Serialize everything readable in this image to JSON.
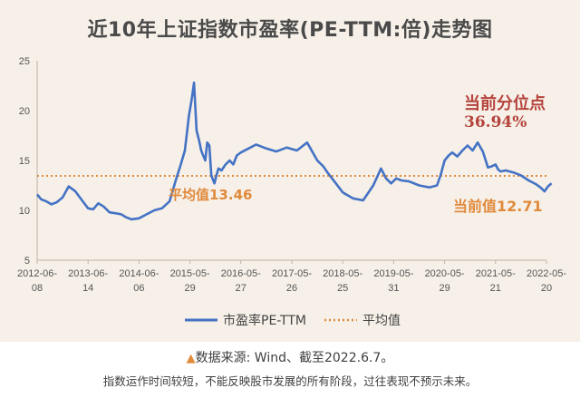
{
  "title": "近10年上证指数市盈率(PE-TTM:倍)走势图",
  "source": {
    "marker": "▲",
    "text": "数据来源: Wind、截至2022.6.7。"
  },
  "disclaimer": "指数运作时间较短，不能反映股市发展的所有阶段，过往表现不预示未来。",
  "annotations": {
    "avg_label": "平均值13.46",
    "current_label": "当前值12.71",
    "percentile_label": "当前分位点",
    "percentile_value": "36.94%"
  },
  "colors": {
    "line": "#4472c4",
    "average": "#e08a3c",
    "percentile": "#b5443d",
    "background": "#f6f0e8"
  },
  "chart_data": {
    "type": "line",
    "title": "近10年上证指数市盈率(PE-TTM:倍)走势图",
    "ylim": [
      5,
      25
    ],
    "yticks": [
      5,
      10,
      15,
      20,
      25
    ],
    "x_ticks": [
      {
        "line1": "2012-06-",
        "line2": "08"
      },
      {
        "line1": "2013-06-",
        "line2": "14"
      },
      {
        "line1": "2014-06-",
        "line2": "06"
      },
      {
        "line1": "2015-05-",
        "line2": "29"
      },
      {
        "line1": "2016-05-",
        "line2": "27"
      },
      {
        "line1": "2017-05-",
        "line2": "26"
      },
      {
        "line1": "2018-05-",
        "line2": "25"
      },
      {
        "line1": "2019-05-",
        "line2": "31"
      },
      {
        "line1": "2020-05-",
        "line2": "29"
      },
      {
        "line1": "2021-05-",
        "line2": "21"
      },
      {
        "line1": "2022-05-",
        "line2": "20"
      }
    ],
    "legend": {
      "series": "市盈率PE-TTM",
      "average": "平均值",
      "placement": "bottom"
    },
    "average": 13.46,
    "current": 12.71,
    "series": [
      {
        "name": "市盈率PE-TTM",
        "x": [
          0.0,
          0.08,
          0.18,
          0.28,
          0.38,
          0.5,
          0.62,
          0.75,
          0.88,
          1.0,
          1.1,
          1.2,
          1.3,
          1.42,
          1.55,
          1.65,
          1.75,
          1.85,
          2.0,
          2.15,
          2.3,
          2.45,
          2.6,
          2.72,
          2.82,
          2.9,
          2.98,
          3.03,
          3.08,
          3.13,
          3.18,
          3.22,
          3.26,
          3.3,
          3.34,
          3.38,
          3.42,
          3.48,
          3.52,
          3.56,
          3.62,
          3.7,
          3.78,
          3.85,
          3.92,
          4.0,
          4.15,
          4.3,
          4.5,
          4.7,
          4.9,
          5.1,
          5.3,
          5.5,
          5.62,
          5.7,
          5.85,
          6.0,
          6.2,
          6.4,
          6.6,
          6.75,
          6.85,
          6.95,
          7.05,
          7.15,
          7.3,
          7.5,
          7.7,
          7.85,
          7.92,
          8.0,
          8.08,
          8.15,
          8.25,
          8.35,
          8.45,
          8.55,
          8.65,
          8.75,
          8.85,
          8.92,
          9.0,
          9.05,
          9.1,
          9.2,
          9.35,
          9.5,
          9.65,
          9.8,
          9.88,
          9.96,
          10.03,
          10.1
        ],
        "y": [
          11.6,
          11.1,
          10.9,
          10.6,
          10.8,
          11.3,
          12.4,
          11.9,
          11.0,
          10.2,
          10.1,
          10.7,
          10.4,
          9.8,
          9.7,
          9.6,
          9.3,
          9.1,
          9.2,
          9.6,
          10.0,
          10.2,
          10.9,
          13.0,
          14.6,
          16.0,
          19.5,
          21.0,
          22.8,
          18.0,
          17.0,
          16.0,
          15.5,
          15.0,
          16.8,
          16.5,
          13.5,
          12.7,
          13.5,
          14.2,
          14.0,
          14.6,
          15.0,
          14.6,
          15.5,
          15.8,
          16.2,
          16.6,
          16.2,
          15.9,
          16.3,
          16.0,
          16.8,
          15.0,
          14.4,
          13.8,
          12.8,
          11.8,
          11.2,
          11.0,
          12.5,
          14.2,
          13.2,
          12.7,
          13.2,
          13.0,
          12.9,
          12.5,
          12.3,
          12.5,
          13.5,
          15.0,
          15.5,
          15.8,
          15.4,
          16.0,
          16.5,
          16.0,
          16.8,
          15.9,
          14.3,
          14.4,
          14.6,
          14.1,
          13.9,
          14.0,
          13.8,
          13.5,
          13.0,
          12.6,
          12.3,
          11.9,
          12.4,
          12.71
        ]
      }
    ]
  }
}
